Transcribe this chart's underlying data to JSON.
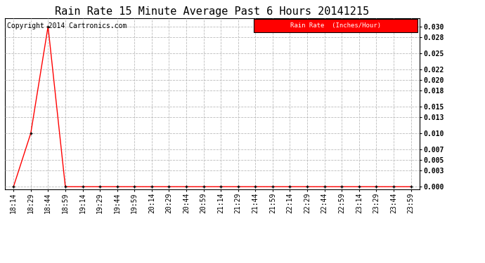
{
  "title": "Rain Rate 15 Minute Average Past 6 Hours 20141215",
  "copyright": "Copyright 2014 Cartronics.com",
  "legend_label": "Rain Rate  (Inches/Hour)",
  "legend_bg": "#ff0000",
  "legend_text_color": "#ffffff",
  "line_color": "#ff0000",
  "marker": "+",
  "marker_color": "#000000",
  "background_color": "#ffffff",
  "grid_color": "#bbbbbb",
  "x_labels": [
    "18:14",
    "18:29",
    "18:44",
    "18:59",
    "19:14",
    "19:29",
    "19:44",
    "19:59",
    "20:14",
    "20:29",
    "20:44",
    "20:59",
    "21:14",
    "21:29",
    "21:44",
    "21:59",
    "22:14",
    "22:29",
    "22:44",
    "22:59",
    "23:14",
    "23:29",
    "23:44",
    "23:59"
  ],
  "y_values": [
    0.0,
    0.01,
    0.03,
    0.0,
    0.0,
    0.0,
    0.0,
    0.0,
    0.0,
    0.0,
    0.0,
    0.0,
    0.0,
    0.0,
    0.0,
    0.0,
    0.0,
    0.0,
    0.0,
    0.0,
    0.0,
    0.0,
    0.0,
    0.0
  ],
  "yticks": [
    0.0,
    0.003,
    0.005,
    0.007,
    0.01,
    0.013,
    0.015,
    0.018,
    0.02,
    0.022,
    0.025,
    0.028,
    0.03
  ],
  "ylim": [
    -0.0005,
    0.0315
  ],
  "title_fontsize": 11,
  "tick_fontsize": 7,
  "copyright_fontsize": 7
}
